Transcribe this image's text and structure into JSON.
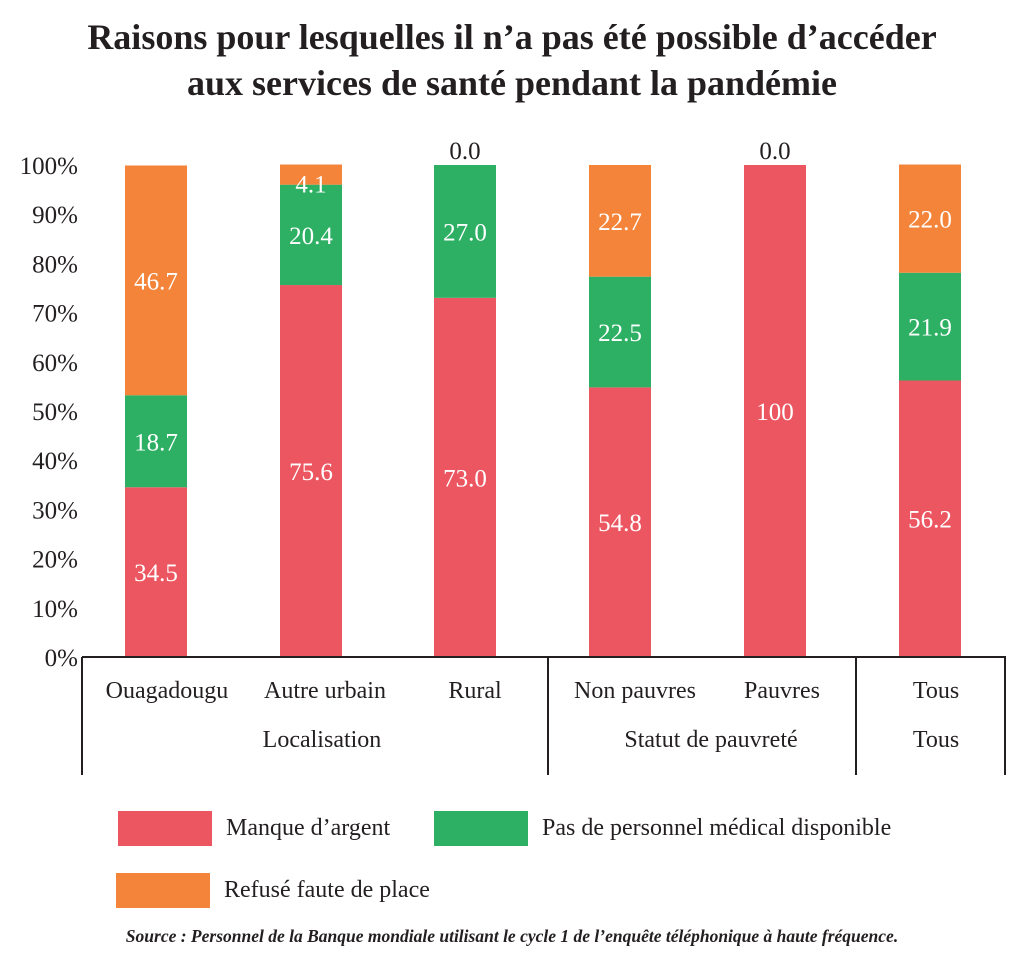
{
  "chart_data": {
    "type": "bar",
    "stacked": true,
    "title": "Raisons pour lesquelles il n’a pas été possible d’accéder aux services de santé pendant la pandémie",
    "title_lines": [
      "Raisons pour lesquelles il n’a pas été possible d’accéder",
      "aux services de santé pendant la pandémie"
    ],
    "xlabel": "",
    "ylabel": "",
    "ylim": [
      0,
      100
    ],
    "yticks": [
      "0%",
      "10%",
      "20%",
      "30%",
      "40%",
      "50%",
      "60%",
      "70%",
      "80%",
      "90%",
      "100%"
    ],
    "grid": false,
    "categories": [
      "Ouagadougu",
      "Autre urbain",
      "Rural",
      "Non pauvres",
      "Pauvres",
      "Tous"
    ],
    "groups": [
      {
        "label": "Localisation",
        "categories": [
          "Ouagadougu",
          "Autre urbain",
          "Rural"
        ]
      },
      {
        "label": "Statut de pauvreté",
        "categories": [
          "Non pauvres",
          "Pauvres"
        ]
      },
      {
        "label": "Tous",
        "categories": [
          "Tous"
        ]
      }
    ],
    "series": [
      {
        "name": "Manque d’argent",
        "color": "#ec5661",
        "values": [
          34.5,
          75.6,
          73.0,
          54.8,
          100,
          56.2
        ],
        "labels": [
          "34.5",
          "75.6",
          "73.0",
          "54.8",
          "100",
          "56.2"
        ]
      },
      {
        "name": "Pas de personnel médical disponible",
        "color": "#2db063",
        "values": [
          18.7,
          20.4,
          27.0,
          22.5,
          0,
          21.9
        ],
        "labels": [
          "18.7",
          "20.4",
          "27.0",
          "22.5",
          "",
          "21.9"
        ]
      },
      {
        "name": "Refusé faute de place",
        "color": "#f4843a",
        "values": [
          46.7,
          4.1,
          0.0,
          22.7,
          0.0,
          22.0
        ],
        "labels": [
          "46.7",
          "4.1",
          "0.0",
          "22.7",
          "0.0",
          "22.0"
        ]
      }
    ],
    "legend_position": "bottom",
    "source": "Source : Personnel de la Banque mondiale utilisant le cycle 1 de l’enquête téléphonique à haute fréquence."
  }
}
